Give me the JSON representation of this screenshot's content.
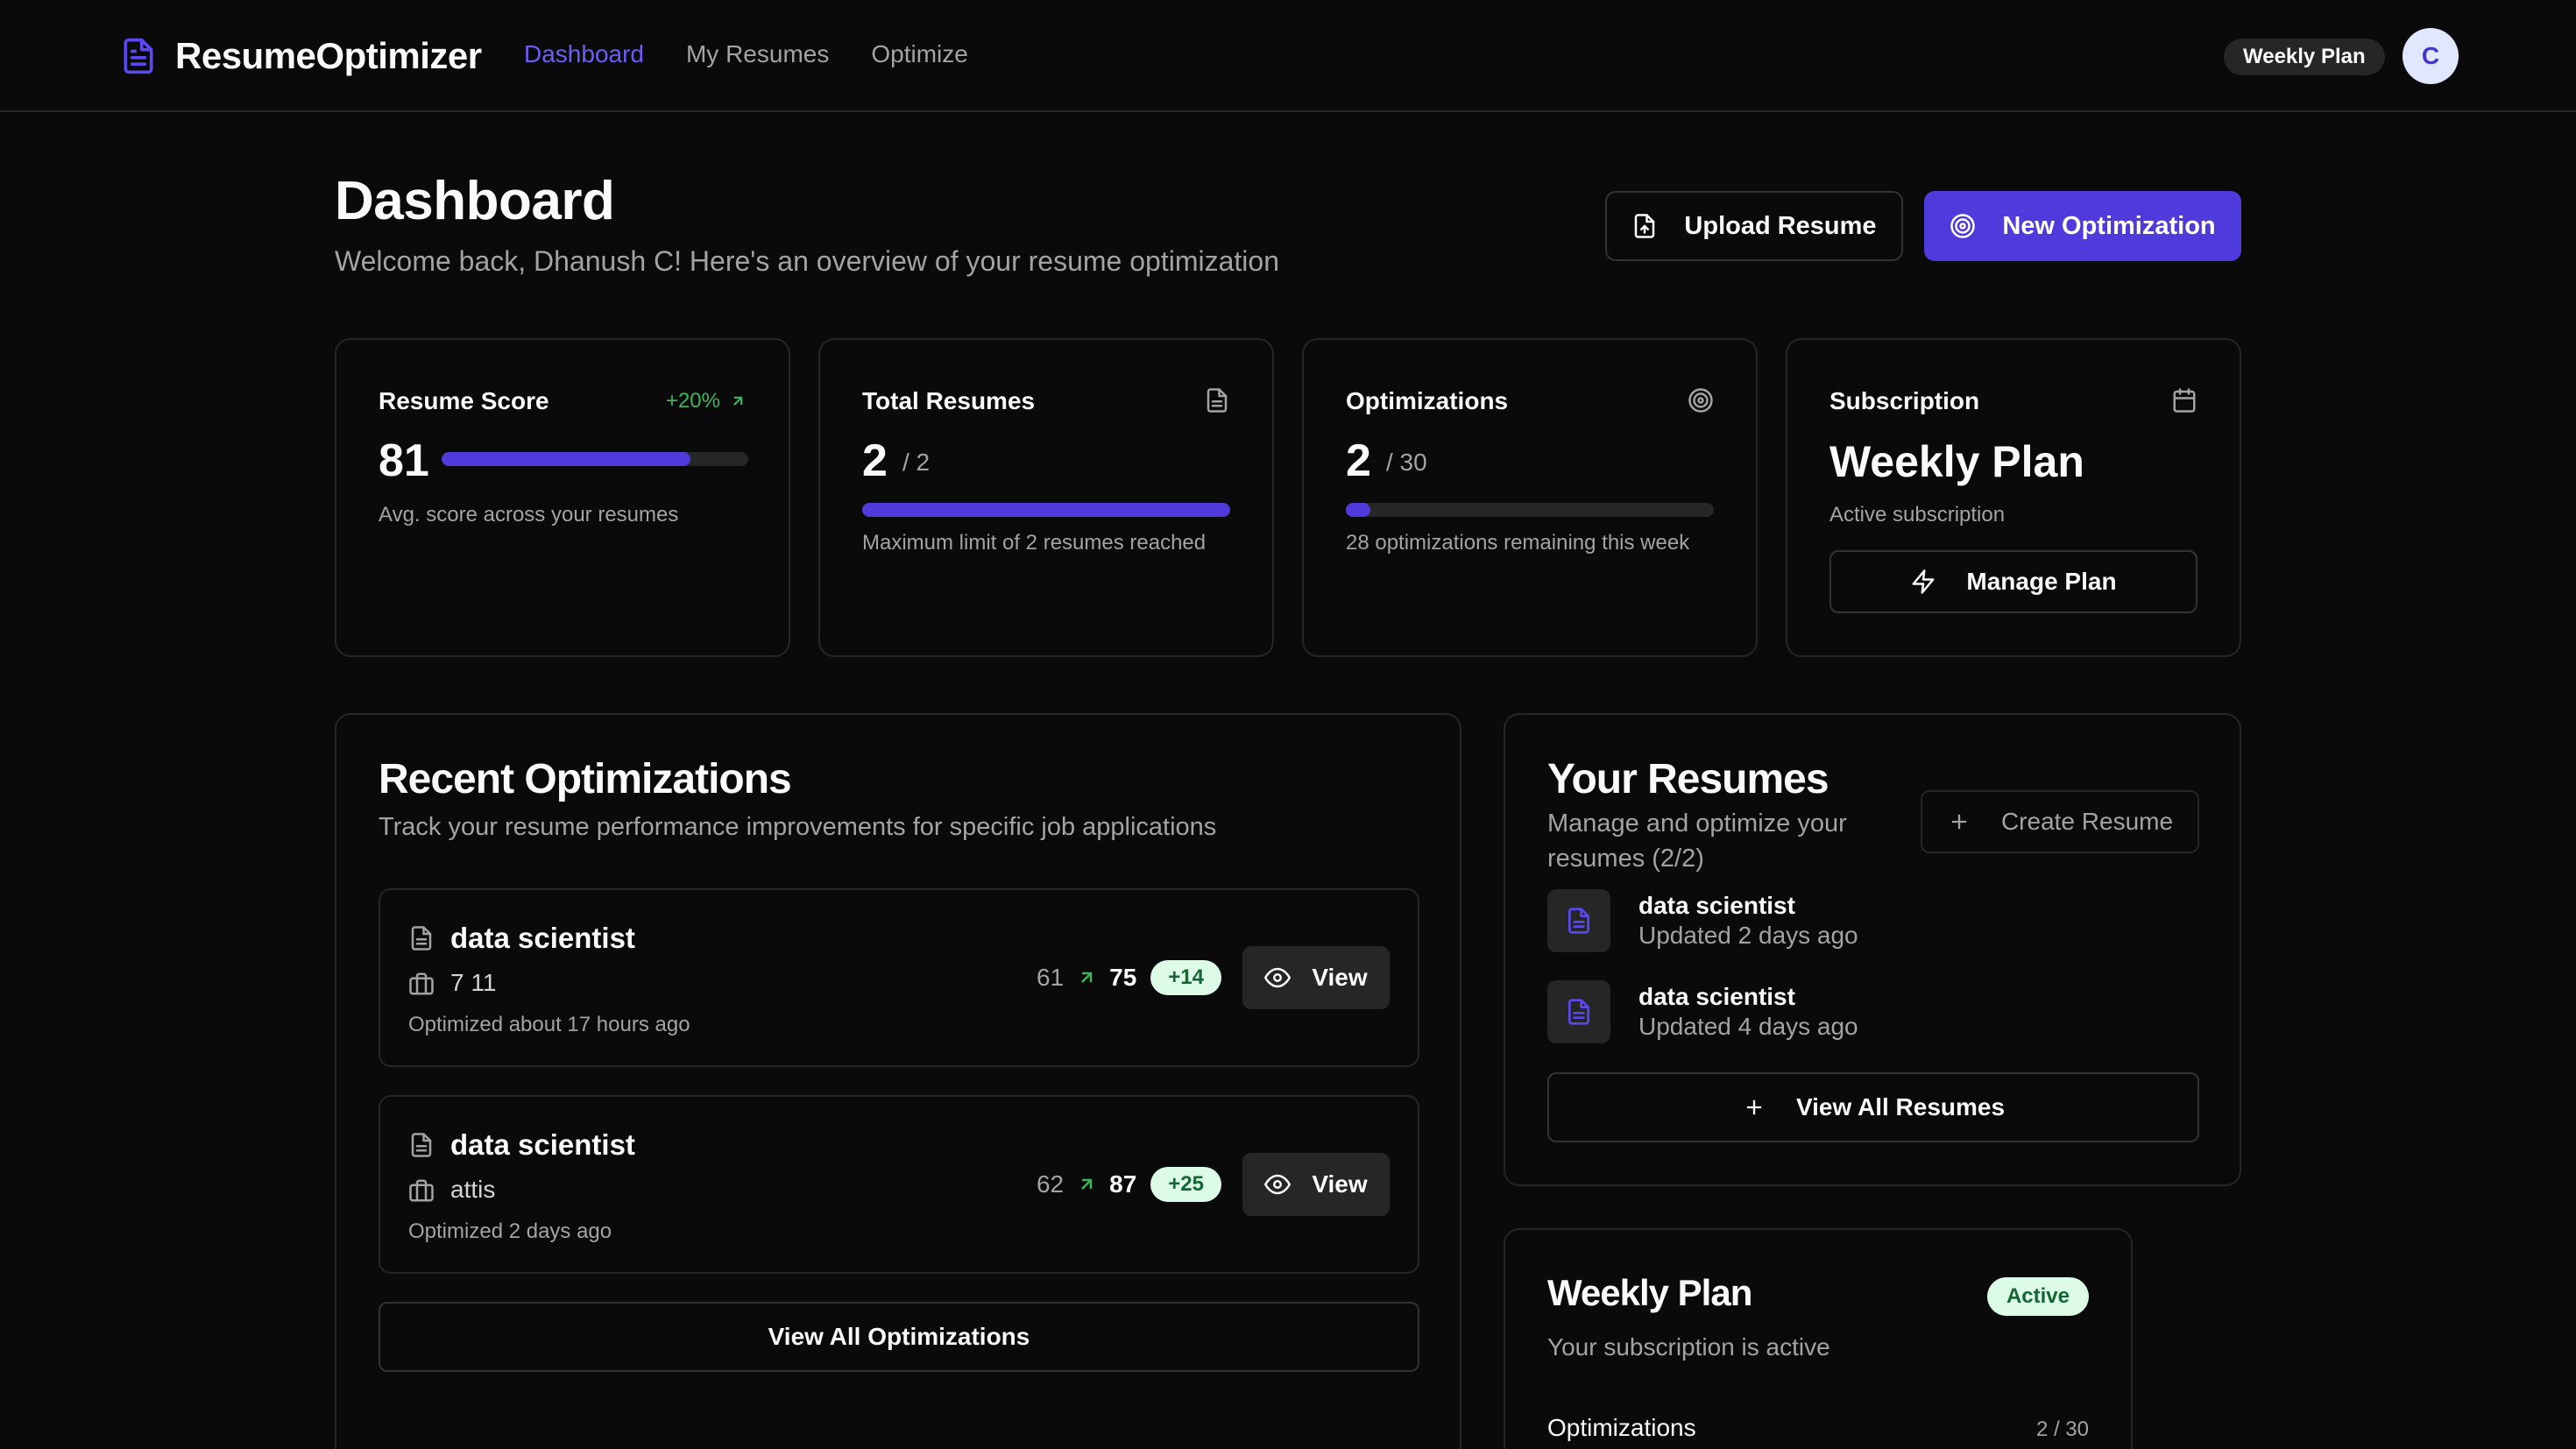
{
  "app": {
    "name": "ResumeOptimizer",
    "logo_icon": "file-text-icon"
  },
  "nav": {
    "links": [
      "Dashboard",
      "My Resumes",
      "Optimize"
    ],
    "active": "Dashboard",
    "plan_badge": "Weekly Plan",
    "avatar_initial": "C"
  },
  "header": {
    "title": "Dashboard",
    "subtitle": "Welcome back, Dhanush C! Here's an overview of your resume optimization",
    "upload_button": "Upload Resume",
    "new_optimization_button": "New Optimization"
  },
  "stats": {
    "resume_score": {
      "label": "Resume Score",
      "value": "81",
      "delta": "+20%",
      "progress": 0.81,
      "note": "Avg. score across your resumes"
    },
    "total_resumes": {
      "label": "Total Resumes",
      "value": "2",
      "limit": "/ 2",
      "progress": 1.0,
      "note": "Maximum limit of 2 resumes reached"
    },
    "optimizations": {
      "label": "Optimizations",
      "value": "2",
      "limit": "/ 30",
      "progress": 0.0667,
      "note": "28 optimizations remaining this week"
    },
    "subscription": {
      "label": "Subscription",
      "value": "Weekly Plan",
      "status": "Active subscription",
      "manage_button": "Manage Plan"
    }
  },
  "recent": {
    "title": "Recent Optimizations",
    "subtitle": "Track your resume performance improvements for specific job applications",
    "items": [
      {
        "title": "data scientist",
        "company": "7 11",
        "when": "Optimized about 17 hours ago",
        "before": "61",
        "after": "75",
        "gain": "+14",
        "view": "View"
      },
      {
        "title": "data scientist",
        "company": "attis",
        "when": "Optimized 2 days ago",
        "before": "62",
        "after": "87",
        "gain": "+25",
        "view": "View"
      }
    ],
    "view_all": "View All Optimizations"
  },
  "resumes": {
    "title": "Your Resumes",
    "subtitle": "Manage and optimize your resumes (2/2)",
    "create_button": "Create Resume",
    "items": [
      {
        "name": "data scientist",
        "updated": "Updated 2 days ago"
      },
      {
        "name": "data scientist",
        "updated": "Updated 4 days ago"
      }
    ],
    "view_all": "View All Resumes"
  },
  "weekly_plan": {
    "title": "Weekly Plan",
    "badge": "Active",
    "subtitle": "Your subscription is active",
    "row_label": "Optimizations",
    "row_value": "2 / 30"
  },
  "colors": {
    "accent": "#4f3bdc",
    "success": "#3fb45f",
    "background": "#0a0a0a",
    "border": "#262626"
  }
}
